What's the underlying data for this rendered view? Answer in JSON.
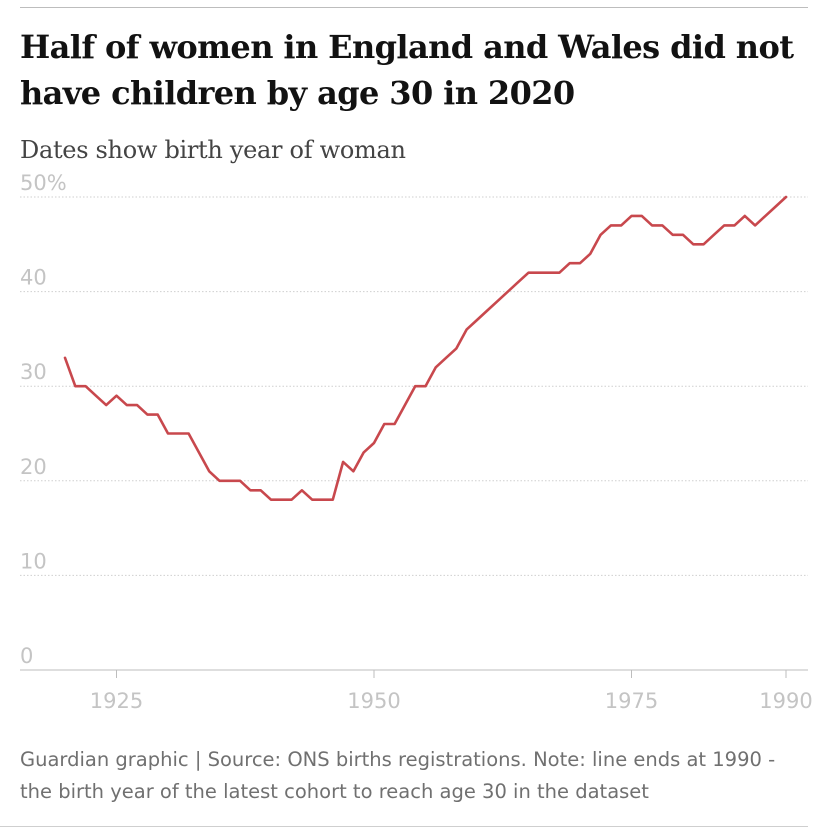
{
  "title": "Half of women in England and Wales did not have children by age 30 in 2020",
  "subtitle": "Dates show birth year of woman",
  "footer": "Guardian graphic | Source: ONS births registrations. Note: line ends at 1990 - the birth year of the latest cohort to reach age 30 in the dataset",
  "colors": {
    "line": "#c8484d",
    "grid": "#cfcfcf",
    "ticks": "#c4c4c4"
  },
  "chart_data": {
    "type": "line",
    "title": "Half of women in England and Wales did not have children by age 30 in 2020",
    "subtitle": "Dates show birth year of woman",
    "xlabel": "",
    "ylabel": "",
    "xlim": [
      1920,
      1990
    ],
    "ylim": [
      0,
      50
    ],
    "grid": true,
    "x_ticks": [
      1925,
      1950,
      1975,
      1990
    ],
    "y_ticks": [
      0,
      10,
      20,
      30,
      40,
      50
    ],
    "y_tick_labels": [
      "0",
      "10",
      "20",
      "30",
      "40",
      "50%"
    ],
    "series": [
      {
        "x": [
          1920,
          1921,
          1922,
          1923,
          1924,
          1925,
          1926,
          1927,
          1928,
          1929,
          1930,
          1931,
          1932,
          1933,
          1934,
          1935,
          1936,
          1937,
          1938,
          1939,
          1940,
          1941,
          1942,
          1943,
          1944,
          1945,
          1946,
          1947,
          1948,
          1949,
          1950,
          1951,
          1952,
          1953,
          1954,
          1955,
          1956,
          1957,
          1958,
          1959,
          1960,
          1961,
          1962,
          1963,
          1964,
          1965,
          1966,
          1967,
          1968,
          1969,
          1970,
          1971,
          1972,
          1973,
          1974,
          1975,
          1976,
          1977,
          1978,
          1979,
          1980,
          1981,
          1982,
          1983,
          1984,
          1985,
          1986,
          1987,
          1988,
          1989,
          1990
        ],
        "values": [
          33,
          30,
          30,
          29,
          28,
          29,
          28,
          28,
          27,
          27,
          25,
          25,
          25,
          23,
          21,
          20,
          20,
          20,
          19,
          19,
          18,
          18,
          18,
          19,
          18,
          18,
          18,
          22,
          21,
          23,
          24,
          26,
          26,
          28,
          30,
          30,
          32,
          33,
          34,
          36,
          37,
          38,
          39,
          40,
          41,
          42,
          42,
          42,
          42,
          43,
          43,
          44,
          46,
          47,
          47,
          48,
          48,
          47,
          47,
          46,
          46,
          45,
          45,
          46,
          47,
          47,
          48,
          47,
          48,
          49,
          50
        ]
      }
    ]
  }
}
